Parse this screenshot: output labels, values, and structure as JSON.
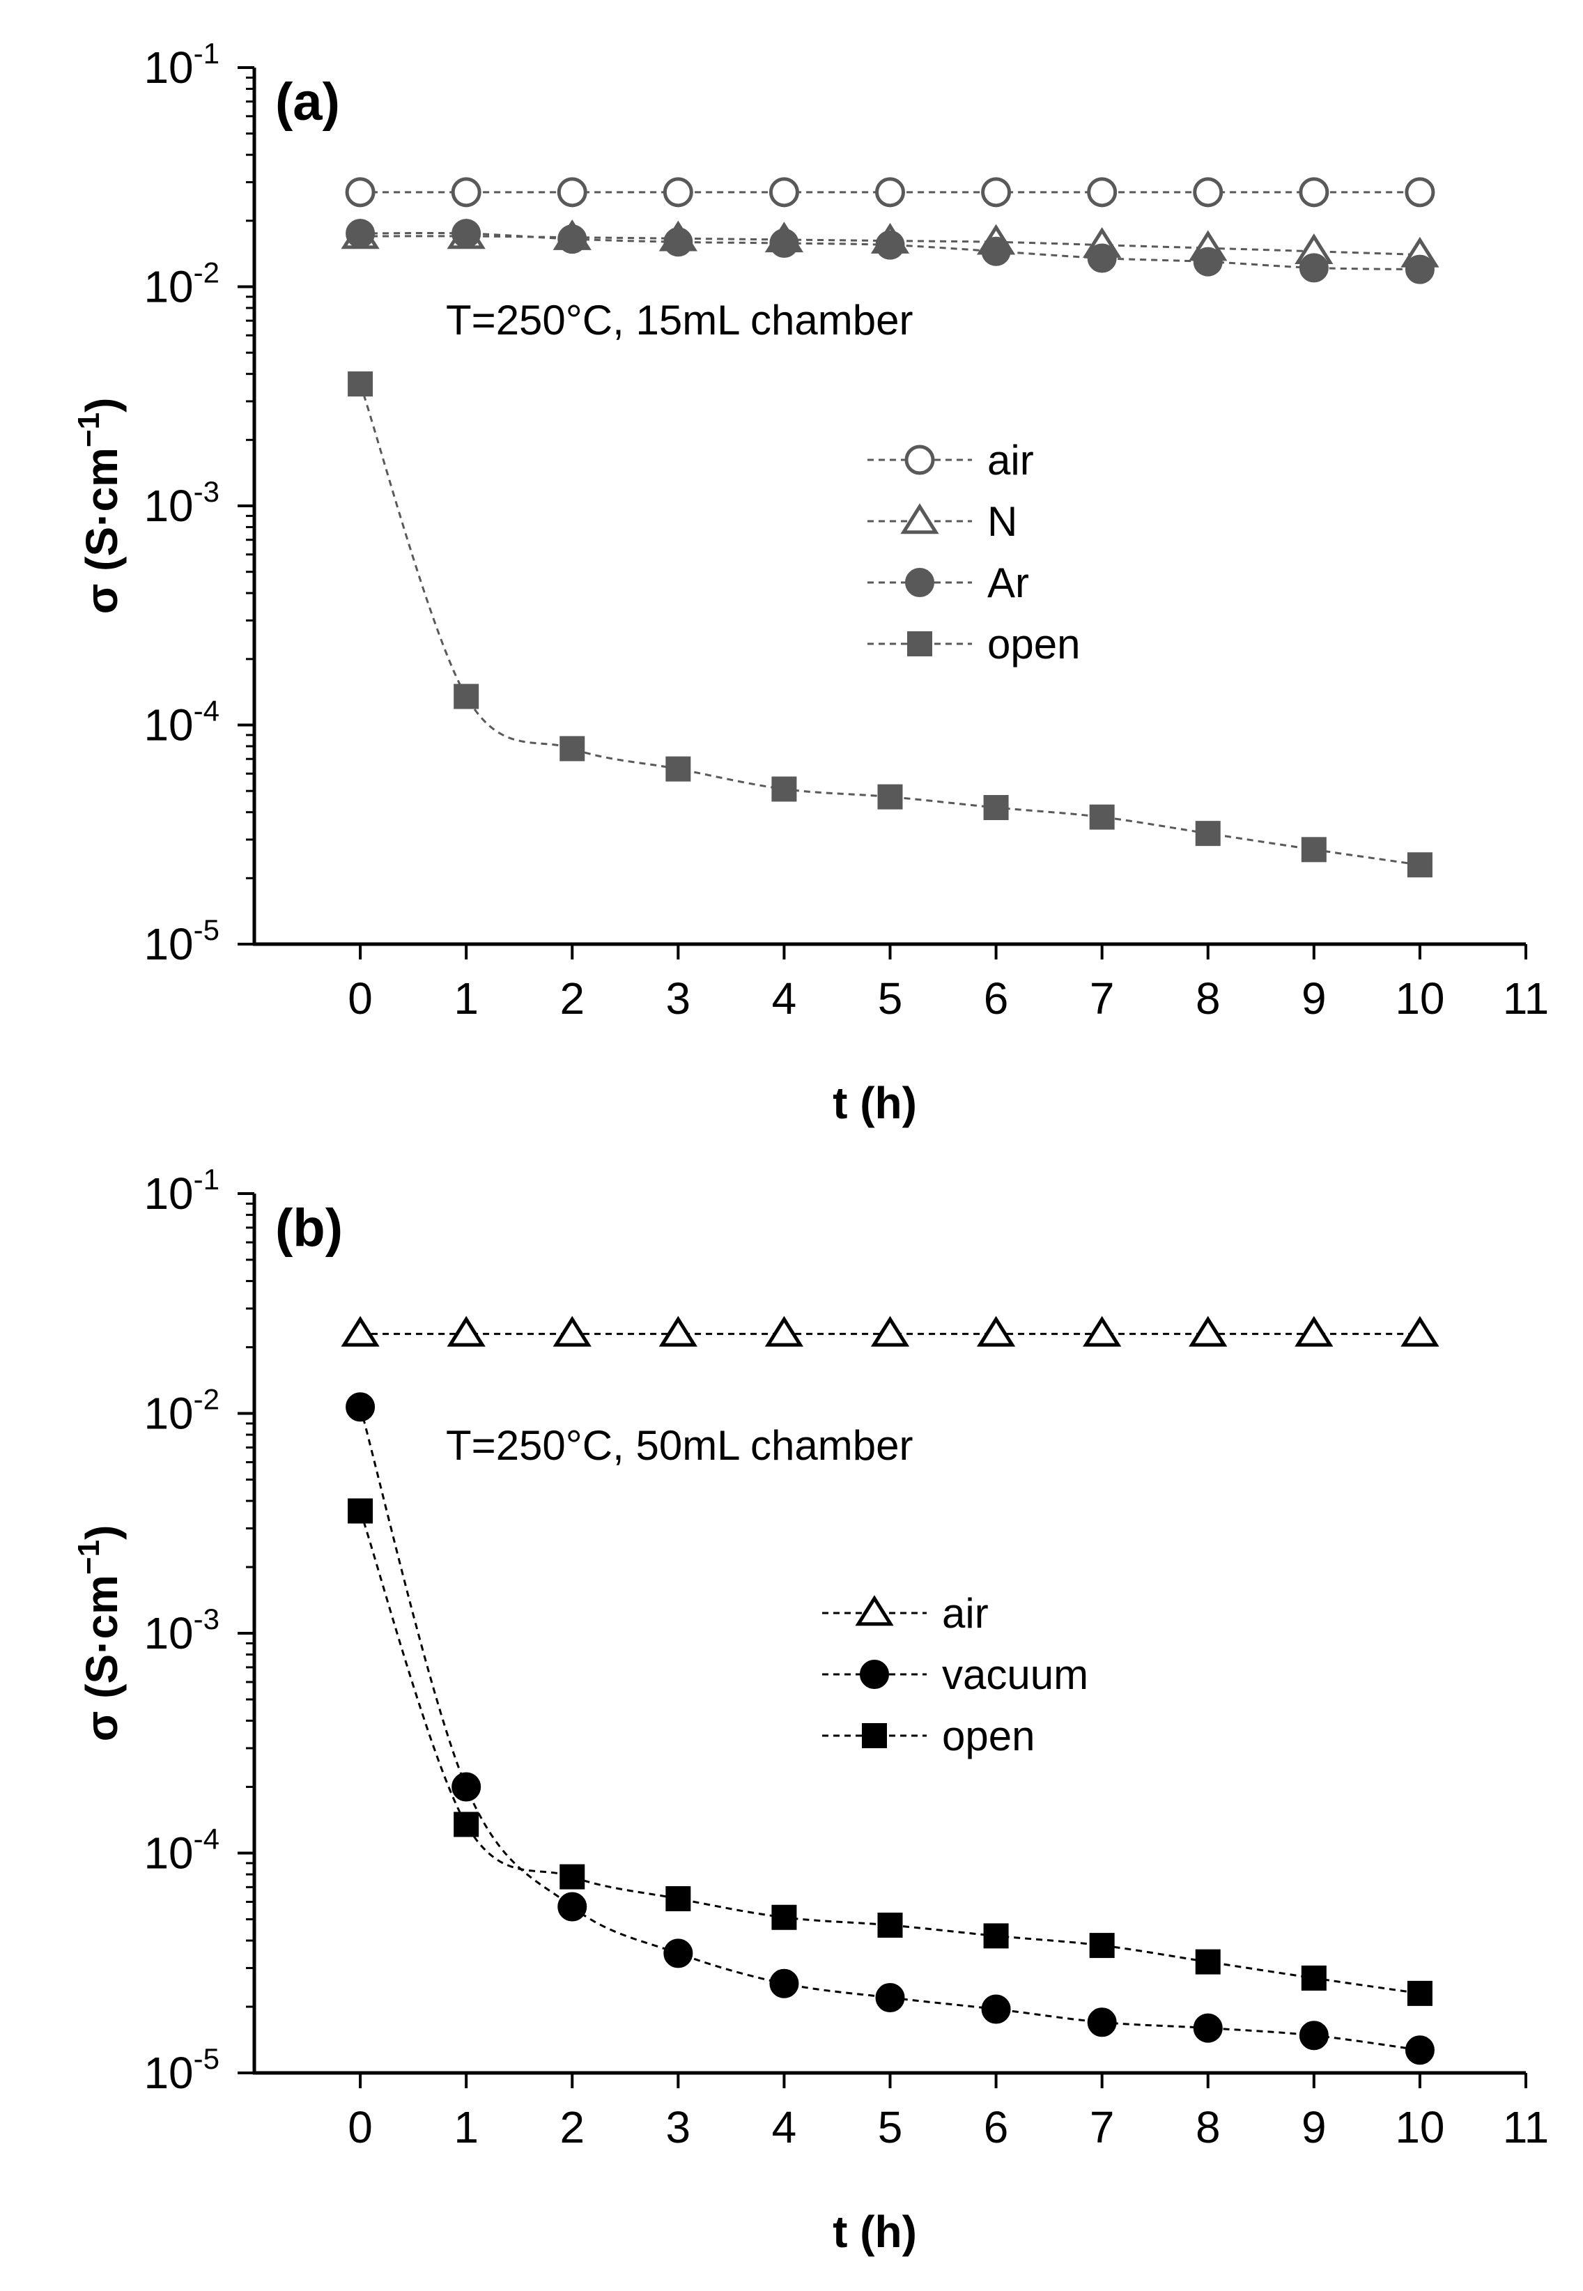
{
  "chart_data": [
    {
      "type": "line",
      "panel_label": "(a)",
      "annotation": "T=250°C, 15mL chamber",
      "xlabel": "t (h)",
      "ylabel_prefix": "σ (S·cm",
      "ylabel_sup": "−1",
      "ylabel_suffix": ")",
      "xlim": [
        -1,
        11
      ],
      "ylim": [
        1e-05,
        0.1
      ],
      "yscale": "log",
      "x_ticks": [
        0,
        1,
        2,
        3,
        4,
        5,
        6,
        7,
        8,
        9,
        10,
        11
      ],
      "y_ticks": [
        {
          "value": 0.1,
          "base": "10",
          "exp": "-1"
        },
        {
          "value": 0.01,
          "base": "10",
          "exp": "-2"
        },
        {
          "value": 0.001,
          "base": "10",
          "exp": "-3"
        },
        {
          "value": 0.0001,
          "base": "10",
          "exp": "-4"
        },
        {
          "value": 1e-05,
          "base": "10",
          "exp": "-5"
        }
      ],
      "legend_position": "center-right",
      "x": [
        0,
        1,
        2,
        3,
        4,
        5,
        6,
        7,
        8,
        9,
        10
      ],
      "series": [
        {
          "name": "air",
          "marker": "circle-open",
          "color": "#595959",
          "values": [
            0.027,
            0.027,
            0.027,
            0.027,
            0.027,
            0.027,
            0.027,
            0.027,
            0.027,
            0.027,
            0.027
          ]
        },
        {
          "name": "N",
          "marker": "triangle-open",
          "color": "#595959",
          "values": [
            0.017,
            0.017,
            0.0168,
            0.0166,
            0.0164,
            0.0162,
            0.016,
            0.0155,
            0.015,
            0.0145,
            0.014
          ]
        },
        {
          "name": "Ar",
          "marker": "circle-filled",
          "color": "#595959",
          "values": [
            0.0175,
            0.0175,
            0.0165,
            0.016,
            0.0158,
            0.0155,
            0.0145,
            0.0135,
            0.013,
            0.0122,
            0.012
          ]
        },
        {
          "name": "open",
          "marker": "square-filled",
          "color": "#595959",
          "values": [
            0.0036,
            0.000135,
            7.8e-05,
            6.3e-05,
            5.1e-05,
            4.7e-05,
            4.2e-05,
            3.8e-05,
            3.2e-05,
            2.7e-05,
            2.3e-05
          ]
        }
      ]
    },
    {
      "type": "line",
      "panel_label": "(b)",
      "annotation": "T=250°C, 50mL chamber",
      "xlabel": "t (h)",
      "ylabel_prefix": "σ (S·cm",
      "ylabel_sup": "−1",
      "ylabel_suffix": ")",
      "xlim": [
        -1,
        11
      ],
      "ylim": [
        1e-05,
        0.1
      ],
      "yscale": "log",
      "x_ticks": [
        0,
        1,
        2,
        3,
        4,
        5,
        6,
        7,
        8,
        9,
        10,
        11
      ],
      "y_ticks": [
        {
          "value": 0.1,
          "base": "10",
          "exp": "-1"
        },
        {
          "value": 0.01,
          "base": "10",
          "exp": "-2"
        },
        {
          "value": 0.001,
          "base": "10",
          "exp": "-3"
        },
        {
          "value": 0.0001,
          "base": "10",
          "exp": "-4"
        },
        {
          "value": 1e-05,
          "base": "10",
          "exp": "-5"
        }
      ],
      "legend_position": "center-right",
      "x": [
        0,
        1,
        2,
        3,
        4,
        5,
        6,
        7,
        8,
        9,
        10
      ],
      "series": [
        {
          "name": "air",
          "marker": "triangle-open",
          "color": "#000000",
          "values": [
            0.023,
            0.023,
            0.023,
            0.023,
            0.023,
            0.023,
            0.023,
            0.023,
            0.023,
            0.023,
            0.023
          ]
        },
        {
          "name": "vacuum",
          "marker": "circle-filled",
          "color": "#000000",
          "values": [
            0.0107,
            0.0002,
            5.7e-05,
            3.5e-05,
            2.55e-05,
            2.2e-05,
            1.95e-05,
            1.7e-05,
            1.6e-05,
            1.48e-05,
            1.27e-05
          ]
        },
        {
          "name": "open",
          "marker": "square-filled",
          "color": "#000000",
          "values": [
            0.0036,
            0.000135,
            7.8e-05,
            6.2e-05,
            5.1e-05,
            4.7e-05,
            4.2e-05,
            3.8e-05,
            3.2e-05,
            2.7e-05,
            2.3e-05
          ]
        }
      ]
    }
  ]
}
